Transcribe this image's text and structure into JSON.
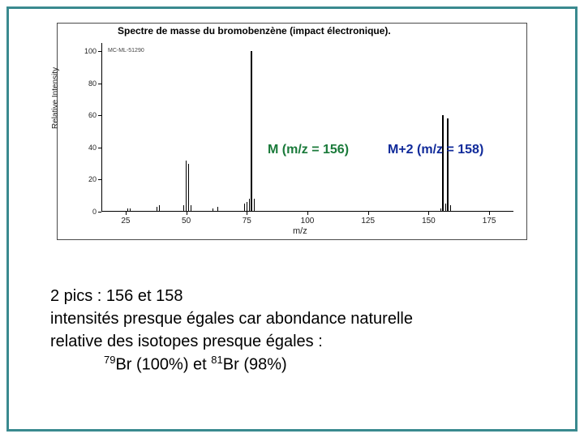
{
  "frame_color": "#3a8a8f",
  "spectrum": {
    "title": "Spectre de masse du bromobenzène (impact électronique).",
    "ylabel": "Relative Intensity",
    "xlabel": "m/z",
    "legend": "MC-ML-51290",
    "xlim": [
      15,
      185
    ],
    "ylim": [
      0,
      105
    ],
    "xticks": [
      25,
      50,
      75,
      100,
      125,
      150,
      175
    ],
    "yticks": [
      0,
      20,
      40,
      60,
      80,
      100
    ],
    "peak_color": "#000000",
    "peaks": [
      {
        "mz": 26,
        "ri": 2
      },
      {
        "mz": 27,
        "ri": 2
      },
      {
        "mz": 38,
        "ri": 3
      },
      {
        "mz": 39,
        "ri": 4
      },
      {
        "mz": 49,
        "ri": 4
      },
      {
        "mz": 50,
        "ri": 32
      },
      {
        "mz": 51,
        "ri": 30
      },
      {
        "mz": 52,
        "ri": 4
      },
      {
        "mz": 61,
        "ri": 2
      },
      {
        "mz": 63,
        "ri": 3
      },
      {
        "mz": 74,
        "ri": 5
      },
      {
        "mz": 75,
        "ri": 6
      },
      {
        "mz": 76,
        "ri": 8
      },
      {
        "mz": 77,
        "ri": 100
      },
      {
        "mz": 78,
        "ri": 8
      },
      {
        "mz": 155,
        "ri": 2
      },
      {
        "mz": 156,
        "ri": 60
      },
      {
        "mz": 157,
        "ri": 5
      },
      {
        "mz": 158,
        "ri": 58
      },
      {
        "mz": 159,
        "ri": 4
      }
    ]
  },
  "annotations": {
    "m_label": "M (m/z = 156)",
    "m_color": "#1a7a3a",
    "m2_label": "M+2 (m/z = 158)",
    "m2_color": "#102a9a"
  },
  "text": {
    "line1": "2 pics : 156 et 158",
    "line2": "intensités presque égales car abondance naturelle",
    "line3": "relative des isotopes presque égales :",
    "iso1_sup": "79",
    "iso1": "Br (100%)",
    "sep": "   et   ",
    "iso2_sup": "81",
    "iso2": "Br (98%)"
  }
}
